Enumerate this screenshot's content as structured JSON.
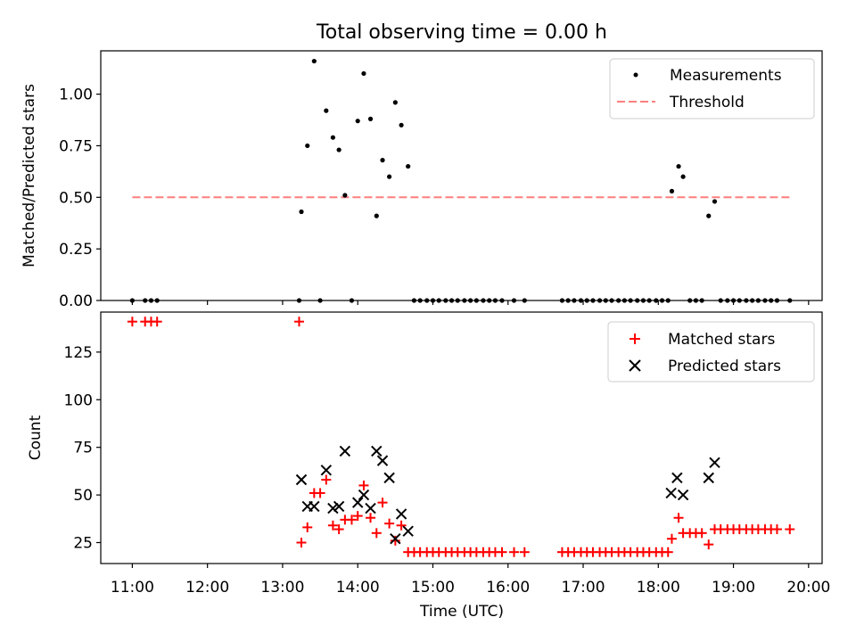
{
  "figure_title": "Total observing time = 0.00 h",
  "x_axis": {
    "label": "Time (UTC)",
    "ticks": [
      "11:00",
      "12:00",
      "13:00",
      "14:00",
      "15:00",
      "16:00",
      "17:00",
      "18:00",
      "19:00",
      "20:00"
    ],
    "range_hours": [
      10.58,
      20.18
    ]
  },
  "chart_data": [
    {
      "type": "scatter",
      "panel": "top",
      "ylabel": "Matched/Predicted stars",
      "ylim": [
        0,
        1.21
      ],
      "yticks": [
        "0.00",
        "0.25",
        "0.50",
        "0.75",
        "1.00"
      ],
      "legend_position": "upper right",
      "threshold": {
        "name": "Threshold",
        "value": 0.5,
        "x_range": [
          11.0,
          19.75
        ],
        "color": "#ff7f7f",
        "style": "dashed"
      },
      "series": [
        {
          "name": "Measurements",
          "color": "#000000",
          "x": [
            11.0,
            11.17,
            11.25,
            11.33,
            13.22,
            13.25,
            13.33,
            13.42,
            13.5,
            13.58,
            13.67,
            13.75,
            13.83,
            13.92,
            14.0,
            14.08,
            14.17,
            14.25,
            14.33,
            14.42,
            14.5,
            14.58,
            14.67,
            14.75,
            14.83,
            14.92,
            15.0,
            15.08,
            15.17,
            15.25,
            15.33,
            15.42,
            15.5,
            15.58,
            15.67,
            15.75,
            15.83,
            15.92,
            16.08,
            16.22,
            16.72,
            16.8,
            16.88,
            16.97,
            17.05,
            17.13,
            17.22,
            17.3,
            17.38,
            17.47,
            17.55,
            17.63,
            17.72,
            17.8,
            17.88,
            17.97,
            18.05,
            18.13,
            18.18,
            18.27,
            18.33,
            18.42,
            18.5,
            18.58,
            18.67,
            18.75,
            18.83,
            18.92,
            19.0,
            19.08,
            19.17,
            19.25,
            19.33,
            19.42,
            19.5,
            19.58,
            19.75
          ],
          "y": [
            0,
            0,
            0,
            0,
            0,
            0.43,
            0.75,
            1.16,
            0,
            0.92,
            0.79,
            0.73,
            0.51,
            0,
            0.87,
            1.1,
            0.88,
            0.41,
            0.68,
            0.6,
            0.96,
            0.85,
            0.65,
            0,
            0,
            0,
            0,
            0,
            0,
            0,
            0,
            0,
            0,
            0,
            0,
            0,
            0,
            0,
            0,
            0,
            0,
            0,
            0,
            0,
            0,
            0,
            0,
            0,
            0,
            0,
            0,
            0,
            0,
            0,
            0,
            0,
            0,
            0,
            0.53,
            0.65,
            0.6,
            0,
            0,
            0,
            0.41,
            0.48,
            0,
            0,
            0,
            0,
            0,
            0,
            0,
            0,
            0,
            0,
            0
          ]
        }
      ]
    },
    {
      "type": "scatter",
      "panel": "bottom",
      "ylabel": "Count",
      "ylim": [
        14,
        146
      ],
      "yticks": [
        "25",
        "50",
        "75",
        "100",
        "125"
      ],
      "legend_position": "upper right",
      "series": [
        {
          "name": "Matched stars",
          "marker": "+",
          "color": "#ff0000",
          "x": [
            11.0,
            11.17,
            11.25,
            11.33,
            13.22,
            13.25,
            13.33,
            13.42,
            13.5,
            13.58,
            13.67,
            13.75,
            13.83,
            13.92,
            14.0,
            14.08,
            14.17,
            14.25,
            14.33,
            14.42,
            14.5,
            14.58,
            14.67,
            14.75,
            14.83,
            14.92,
            15.0,
            15.08,
            15.17,
            15.25,
            15.33,
            15.42,
            15.5,
            15.58,
            15.67,
            15.75,
            15.83,
            15.92,
            16.08,
            16.22,
            16.72,
            16.8,
            16.88,
            16.97,
            17.05,
            17.13,
            17.22,
            17.3,
            17.38,
            17.47,
            17.55,
            17.63,
            17.72,
            17.8,
            17.88,
            17.97,
            18.05,
            18.13,
            18.18,
            18.27,
            18.33,
            18.42,
            18.5,
            18.58,
            18.67,
            18.75,
            18.83,
            18.92,
            19.0,
            19.08,
            19.17,
            19.25,
            19.33,
            19.42,
            19.5,
            19.58,
            19.75
          ],
          "y": [
            141,
            141,
            141,
            141,
            141,
            25,
            33,
            51,
            51,
            58,
            34,
            32,
            37,
            37,
            39,
            55,
            38,
            30,
            46,
            35,
            26,
            34,
            20,
            20,
            20,
            20,
            20,
            20,
            20,
            20,
            20,
            20,
            20,
            20,
            20,
            20,
            20,
            20,
            20,
            20,
            20,
            20,
            20,
            20,
            20,
            20,
            20,
            20,
            20,
            20,
            20,
            20,
            20,
            20,
            20,
            20,
            20,
            20,
            27,
            38,
            30,
            30,
            30,
            30,
            24,
            32,
            32,
            32,
            32,
            32,
            32,
            32,
            32,
            32,
            32,
            32,
            32
          ]
        },
        {
          "name": "Predicted stars",
          "marker": "x",
          "color": "#000000",
          "x": [
            13.25,
            13.33,
            13.42,
            13.58,
            13.67,
            13.75,
            13.83,
            14.0,
            14.08,
            14.17,
            14.25,
            14.33,
            14.42,
            14.5,
            14.58,
            14.67,
            18.17,
            18.25,
            18.33,
            18.67,
            18.75
          ],
          "y": [
            58,
            44,
            44,
            63,
            43,
            44,
            73,
            46,
            50,
            43,
            73,
            68,
            59,
            27,
            40,
            31,
            51,
            59,
            50,
            59,
            67
          ]
        }
      ]
    }
  ]
}
